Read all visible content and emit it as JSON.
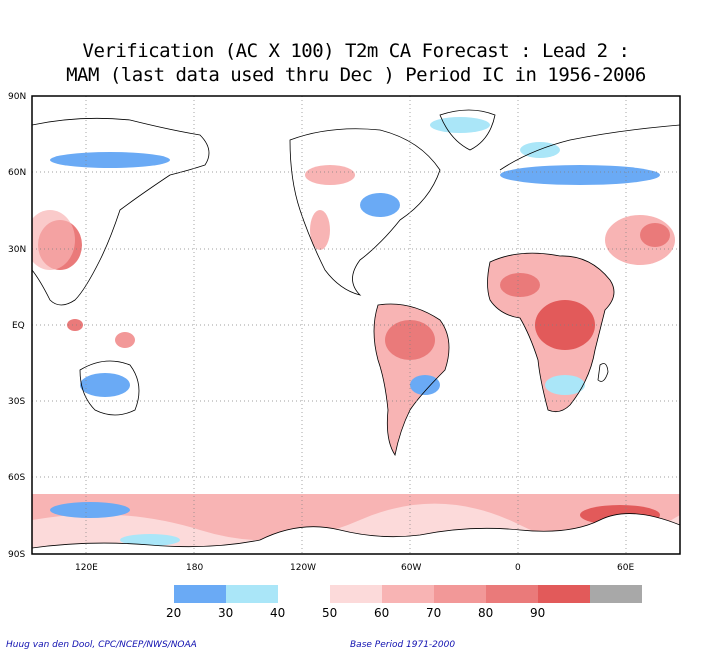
{
  "title": {
    "line1": "Verification (AC X 100) T2m CA Forecast : Lead 2 :",
    "line2": "MAM (last data used thru Dec ) Period IC in 1956-2006"
  },
  "axes": {
    "lat_labels": [
      "90N",
      "60N",
      "30N",
      "EQ",
      "30S",
      "60S",
      "90S"
    ],
    "lon_labels": [
      "120E",
      "180",
      "120W",
      "60W",
      "0",
      "60E"
    ]
  },
  "colorbar": {
    "labels": [
      "20",
      "30",
      "40",
      "50",
      "60",
      "70",
      "80",
      "90"
    ],
    "colors": [
      "#6aaaf5",
      "#aae6f8",
      "#ffffff",
      "#fcdada",
      "#f8b4b4",
      "#f29898",
      "#ea7a7a",
      "#e25a5a",
      "#a8a8a8"
    ]
  },
  "footer": {
    "credit": "Huug van den Dool, CPC/NCEP/NWS/NOAA",
    "base_period": "Base Period 1971-2000"
  }
}
